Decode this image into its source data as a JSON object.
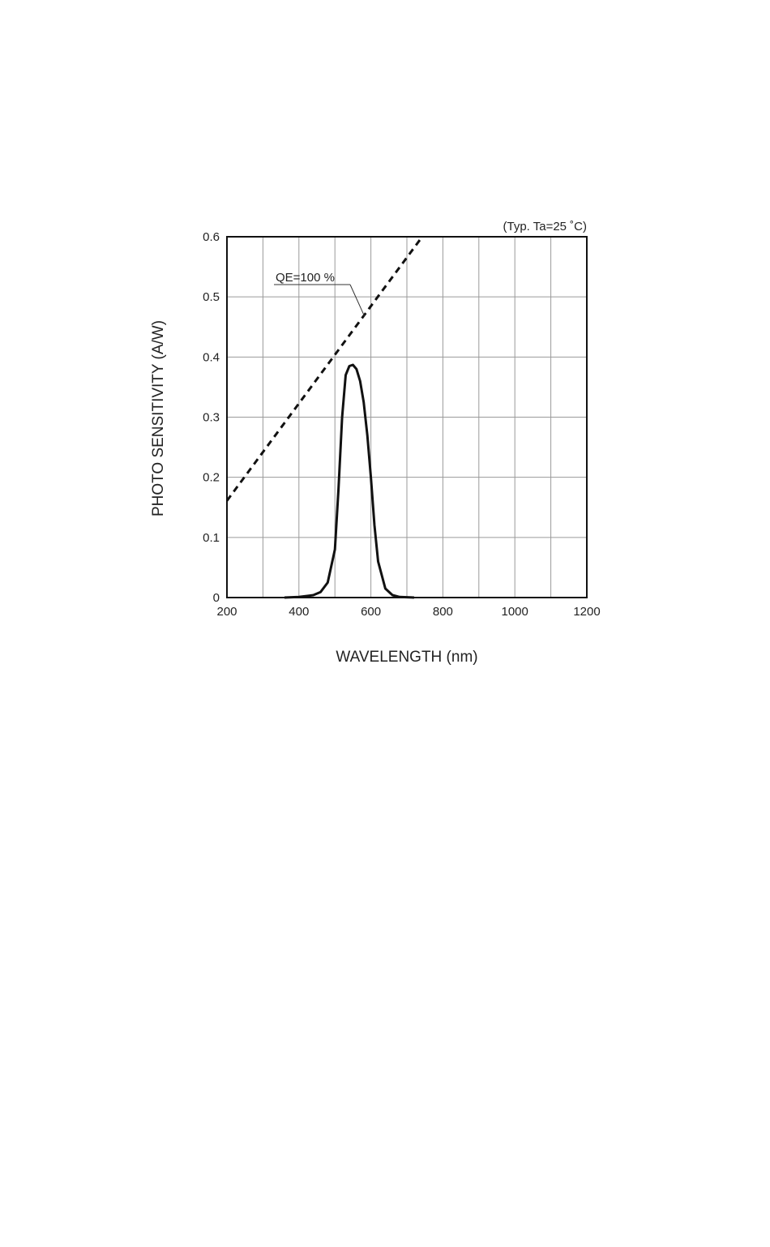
{
  "chart_data": {
    "type": "line",
    "note": "(Typ. Ta=25 ˚C)",
    "xlabel": "WAVELENGTH (nm)",
    "ylabel": "PHOTO SENSITIVITY (A/W)",
    "xlim": [
      200,
      1200
    ],
    "ylim": [
      0,
      0.6
    ],
    "xticks": [
      "200",
      "400",
      "600",
      "800",
      "1000",
      "1200"
    ],
    "yticks": [
      "0",
      "0.1",
      "0.2",
      "0.3",
      "0.4",
      "0.5",
      "0.6"
    ],
    "grid": true,
    "series": [
      {
        "name": "",
        "style": "solid",
        "color": "#111111",
        "x": [
          360,
          400,
          440,
          460,
          480,
          500,
          510,
          520,
          530,
          540,
          550,
          560,
          570,
          580,
          590,
          600,
          610,
          620,
          640,
          660,
          680,
          700,
          720
        ],
        "y": [
          0,
          0.001,
          0.004,
          0.009,
          0.025,
          0.08,
          0.18,
          0.3,
          0.37,
          0.385,
          0.387,
          0.38,
          0.36,
          0.325,
          0.27,
          0.2,
          0.12,
          0.06,
          0.015,
          0.004,
          0.001,
          0.0005,
          0
        ]
      },
      {
        "name": "QE=100 %",
        "style": "dashed",
        "color": "#111111",
        "x": [
          200,
          740
        ],
        "y": [
          0.161,
          0.598
        ]
      }
    ],
    "annotations": [
      {
        "text": "QE=100 %",
        "target_x": 582,
        "target_y": 0.468
      }
    ]
  }
}
